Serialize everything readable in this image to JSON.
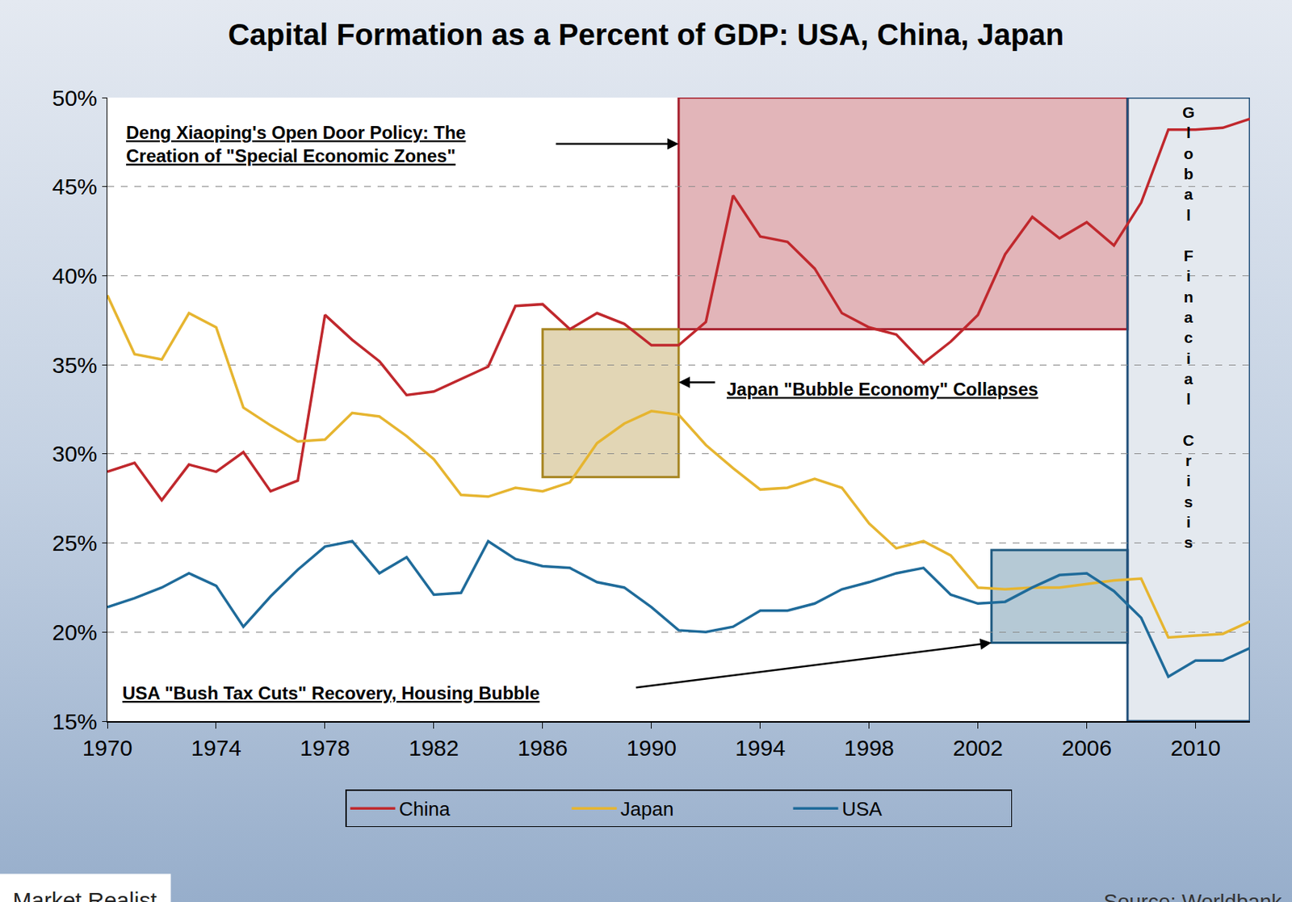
{
  "chart_data": {
    "type": "line",
    "title": "Capital Formation as a Percent of GDP: USA, China, Japan",
    "x": [
      1970,
      1971,
      1972,
      1973,
      1974,
      1975,
      1976,
      1977,
      1978,
      1979,
      1980,
      1981,
      1982,
      1983,
      1984,
      1985,
      1986,
      1987,
      1988,
      1989,
      1990,
      1991,
      1992,
      1993,
      1994,
      1995,
      1996,
      1997,
      1998,
      1999,
      2000,
      2001,
      2002,
      2003,
      2004,
      2005,
      2006,
      2007,
      2008,
      2009,
      2010,
      2011,
      2012
    ],
    "series": [
      {
        "name": "China",
        "color": "#c0282d",
        "values": [
          29.0,
          29.5,
          27.4,
          29.4,
          29.0,
          30.1,
          27.9,
          28.5,
          37.8,
          36.4,
          35.2,
          33.3,
          33.5,
          34.2,
          34.9,
          38.3,
          38.4,
          37.0,
          37.9,
          37.3,
          36.1,
          36.1,
          37.4,
          44.5,
          42.2,
          41.9,
          40.4,
          37.9,
          37.1,
          36.7,
          35.1,
          36.3,
          37.8,
          41.2,
          43.3,
          42.1,
          43.0,
          41.7,
          44.1,
          48.2,
          48.2,
          48.3,
          48.8
        ]
      },
      {
        "name": "Japan",
        "color": "#e6b530",
        "values": [
          38.9,
          35.6,
          35.3,
          37.9,
          37.1,
          32.6,
          31.6,
          30.7,
          30.8,
          32.3,
          32.1,
          31.0,
          29.7,
          27.7,
          27.6,
          28.1,
          27.9,
          28.4,
          30.6,
          31.7,
          32.4,
          32.2,
          30.5,
          29.2,
          28.0,
          28.1,
          28.6,
          28.1,
          26.1,
          24.7,
          25.1,
          24.3,
          22.5,
          22.4,
          22.5,
          22.5,
          22.7,
          22.9,
          23.0,
          19.7,
          19.8,
          19.9,
          20.6
        ]
      },
      {
        "name": "USA",
        "color": "#1f6b9a",
        "values": [
          21.4,
          21.9,
          22.5,
          23.3,
          22.6,
          20.3,
          22.0,
          23.5,
          24.8,
          25.1,
          23.3,
          24.2,
          22.1,
          22.2,
          25.1,
          24.1,
          23.7,
          23.6,
          22.8,
          22.5,
          21.4,
          20.1,
          20.0,
          20.3,
          21.2,
          21.2,
          21.6,
          22.4,
          22.8,
          23.3,
          23.6,
          22.1,
          21.6,
          21.7,
          22.5,
          23.2,
          23.3,
          22.3,
          20.8,
          17.5,
          18.4,
          18.4,
          19.1
        ]
      }
    ],
    "xlim": [
      1970,
      2012
    ],
    "xticks": [
      1970,
      1974,
      1978,
      1982,
      1986,
      1990,
      1994,
      1998,
      2002,
      2006,
      2010
    ],
    "ylim": [
      15,
      50
    ],
    "yticks": [
      {
        "value": 15,
        "label": "15%"
      },
      {
        "value": 20,
        "label": "20%"
      },
      {
        "value": 25,
        "label": "25%"
      },
      {
        "value": 30,
        "label": "30%"
      },
      {
        "value": 35,
        "label": "35%"
      },
      {
        "value": 40,
        "label": "40%"
      },
      {
        "value": 45,
        "label": "45%"
      },
      {
        "value": 50,
        "label": "50%"
      }
    ],
    "grid": true,
    "legend": "bottom",
    "annotations": [
      {
        "text": "Deng Xiaoping's Open Door Policy: The\nCreation of \"Special Economic Zones\"",
        "region": {
          "x": [
            1991,
            2007.5
          ],
          "y": [
            37,
            50
          ]
        },
        "color": "#a61d2b"
      },
      {
        "text": "Japan \"Bubble Economy\" Collapses",
        "region": {
          "x": [
            1986,
            1991
          ],
          "y": [
            28.7,
            37
          ]
        },
        "color": "#a6841f"
      },
      {
        "text": "USA \"Bush Tax Cuts\" Recovery, Housing Bubble",
        "region": {
          "x": [
            2002.5,
            2007.5
          ],
          "y": [
            19.4,
            24.6
          ]
        },
        "color": "#1f5a80"
      },
      {
        "text": "Global Finacial Crisis",
        "region": {
          "x": [
            2007.5,
            2012
          ],
          "y": [
            15,
            50
          ]
        },
        "color": "#1f4e79"
      }
    ],
    "source": "Source: Worldbank",
    "credit": "Market Realist"
  }
}
